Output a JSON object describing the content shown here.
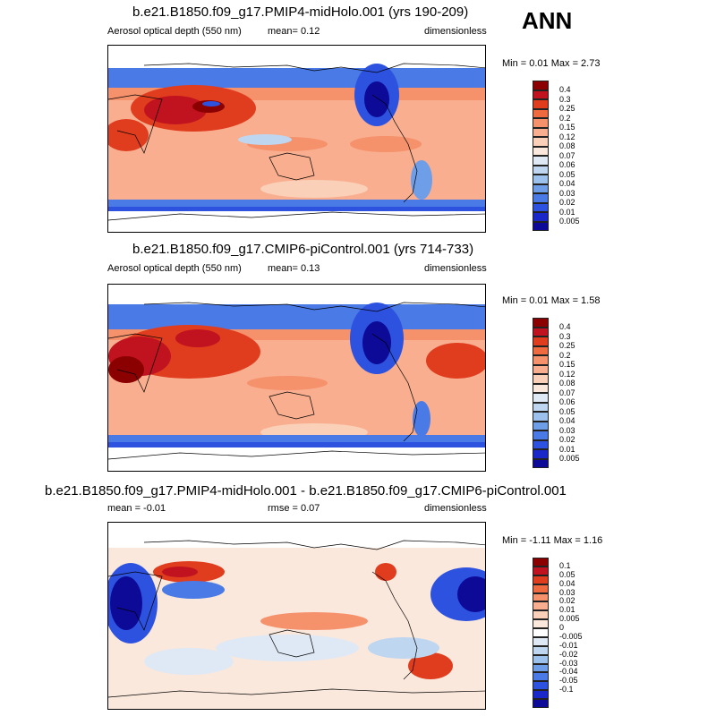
{
  "season": "ANN",
  "panels": [
    {
      "title": "b.e21.B1850.f09_g17.PMIP4-midHolo.001 (yrs 190-209)",
      "left_label": "Aerosol optical depth (550 nm)",
      "center_label": "mean=  0.12",
      "right_label": "dimensionless",
      "minmax": "Min =  0.01 Max =  2.73",
      "colorbar": {
        "colors": [
          "#8b0000",
          "#c1121f",
          "#e03d1f",
          "#ef6a3f",
          "#f5916b",
          "#f8ae8f",
          "#fbd0b9",
          "#fbe8dc",
          "#dfe9f5",
          "#bfd6f0",
          "#9cc1ec",
          "#6f9ee9",
          "#4a7ae6",
          "#2e52e0",
          "#1a27c9",
          "#0c0a96"
        ],
        "labels": [
          "0.4",
          "0.3",
          "0.25",
          "0.2",
          "0.15",
          "0.12",
          "0.08",
          "0.07",
          "0.06",
          "0.05",
          "0.04",
          "0.03",
          "0.02",
          "0.01",
          "0.005"
        ]
      }
    },
    {
      "title": "b.e21.B1850.f09_g17.CMIP6-piControl.001 (yrs 714-733)",
      "left_label": "Aerosol optical depth (550 nm)",
      "center_label": "mean=  0.13",
      "right_label": "dimensionless",
      "minmax": "Min =  0.01 Max =  1.58",
      "colorbar": {
        "colors": [
          "#8b0000",
          "#c1121f",
          "#e03d1f",
          "#ef6a3f",
          "#f5916b",
          "#f8ae8f",
          "#fbd0b9",
          "#fbe8dc",
          "#dfe9f5",
          "#bfd6f0",
          "#9cc1ec",
          "#6f9ee9",
          "#4a7ae6",
          "#2e52e0",
          "#1a27c9",
          "#0c0a96"
        ],
        "labels": [
          "0.4",
          "0.3",
          "0.25",
          "0.2",
          "0.15",
          "0.12",
          "0.08",
          "0.07",
          "0.06",
          "0.05",
          "0.04",
          "0.03",
          "0.02",
          "0.01",
          "0.005"
        ]
      }
    },
    {
      "title": "b.e21.B1850.f09_g17.PMIP4-midHolo.001 - b.e21.B1850.f09_g17.CMIP6-piControl.001",
      "left_label": "mean =  -0.01",
      "center_label": "rmse =  0.07",
      "right_label": "dimensionless",
      "minmax": "Min =  -1.11 Max =  1.16",
      "colorbar": {
        "colors": [
          "#8b0000",
          "#c1121f",
          "#e03d1f",
          "#ef6a3f",
          "#f5916b",
          "#f8ae8f",
          "#fbd0b9",
          "#fbe8dc",
          "#ffffff",
          "#dfe9f5",
          "#bfd6f0",
          "#9cc1ec",
          "#6f9ee9",
          "#4a7ae6",
          "#2e52e0",
          "#1a27c9",
          "#0c0a96"
        ],
        "labels": [
          "0.1",
          "0.05",
          "0.04",
          "0.03",
          "0.02",
          "0.01",
          "0.005",
          "0",
          "-0.005",
          "-0.01",
          "-0.02",
          "-0.03",
          "-0.04",
          "-0.05",
          "-0.1"
        ]
      }
    }
  ],
  "chart_data": [
    {
      "type": "heatmap",
      "title": "b.e21.B1850.f09_g17.PMIP4-midHolo.001 (yrs 190-209)",
      "variable": "Aerosol optical depth (550 nm)",
      "units": "dimensionless",
      "mean": 0.12,
      "min": 0.01,
      "max": 2.73,
      "levels": [
        0.005,
        0.01,
        0.02,
        0.03,
        0.04,
        0.05,
        0.06,
        0.07,
        0.08,
        0.12,
        0.15,
        0.2,
        0.25,
        0.3,
        0.4
      ]
    },
    {
      "type": "heatmap",
      "title": "b.e21.B1850.f09_g17.CMIP6-piControl.001 (yrs 714-733)",
      "variable": "Aerosol optical depth (550 nm)",
      "units": "dimensionless",
      "mean": 0.13,
      "min": 0.01,
      "max": 1.58,
      "levels": [
        0.005,
        0.01,
        0.02,
        0.03,
        0.04,
        0.05,
        0.06,
        0.07,
        0.08,
        0.12,
        0.15,
        0.2,
        0.25,
        0.3,
        0.4
      ]
    },
    {
      "type": "heatmap",
      "title": "b.e21.B1850.f09_g17.PMIP4-midHolo.001 - b.e21.B1850.f09_g17.CMIP6-piControl.001",
      "units": "dimensionless",
      "mean": -0.01,
      "rmse": 0.07,
      "min": -1.11,
      "max": 1.16,
      "levels": [
        -0.1,
        -0.05,
        -0.04,
        -0.03,
        -0.02,
        -0.01,
        -0.005,
        0,
        0.005,
        0.01,
        0.02,
        0.03,
        0.04,
        0.05,
        0.1
      ]
    }
  ]
}
